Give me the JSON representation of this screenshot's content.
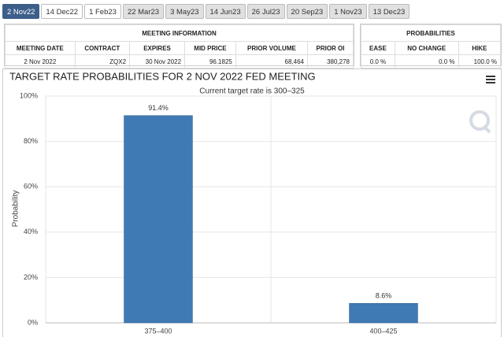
{
  "tabs": {
    "items": [
      "2 Nov22",
      "14 Dec22",
      "1 Feb23",
      "22 Mar23",
      "3 May23",
      "14 Jun23",
      "26 Jul23",
      "20 Sep23",
      "1 Nov23",
      "13 Dec23"
    ]
  },
  "meeting_table": {
    "header": "MEETING INFORMATION",
    "columns": [
      "MEETING DATE",
      "CONTRACT",
      "EXPIRES",
      "MID PRICE",
      "PRIOR VOLUME",
      "PRIOR OI"
    ],
    "rows": [
      [
        "2 Nov 2022",
        "ZQX2",
        "30 Nov 2022",
        "96.1825",
        "68,464",
        "380,278"
      ]
    ]
  },
  "probabilities_table": {
    "header": "PROBABILITIES",
    "columns": [
      "EASE",
      "NO CHANGE",
      "HIKE"
    ],
    "rows": [
      [
        "0.0 %",
        "0.0 %",
        "100.0 %"
      ]
    ]
  },
  "chart_data": {
    "type": "bar",
    "title": "TARGET RATE PROBABILITIES FOR 2 NOV 2022 FED MEETING",
    "subtitle": "Current target rate is 300–325",
    "y_label": "Probability",
    "categories": [
      "375–400",
      "400–425"
    ],
    "values": [
      91.4,
      8.6
    ],
    "value_labels": [
      "91.4%",
      "8.6%"
    ],
    "color": "#3f7ab4",
    "ylim": [
      0,
      100
    ],
    "yticks": [
      {
        "value": 0,
        "label": "0%"
      },
      {
        "value": 20,
        "label": "20%"
      },
      {
        "value": 40,
        "label": "40%"
      },
      {
        "value": 60,
        "label": "60%"
      },
      {
        "value": 80,
        "label": "80%"
      },
      {
        "value": 100,
        "label": "100%"
      }
    ],
    "grid": true
  }
}
